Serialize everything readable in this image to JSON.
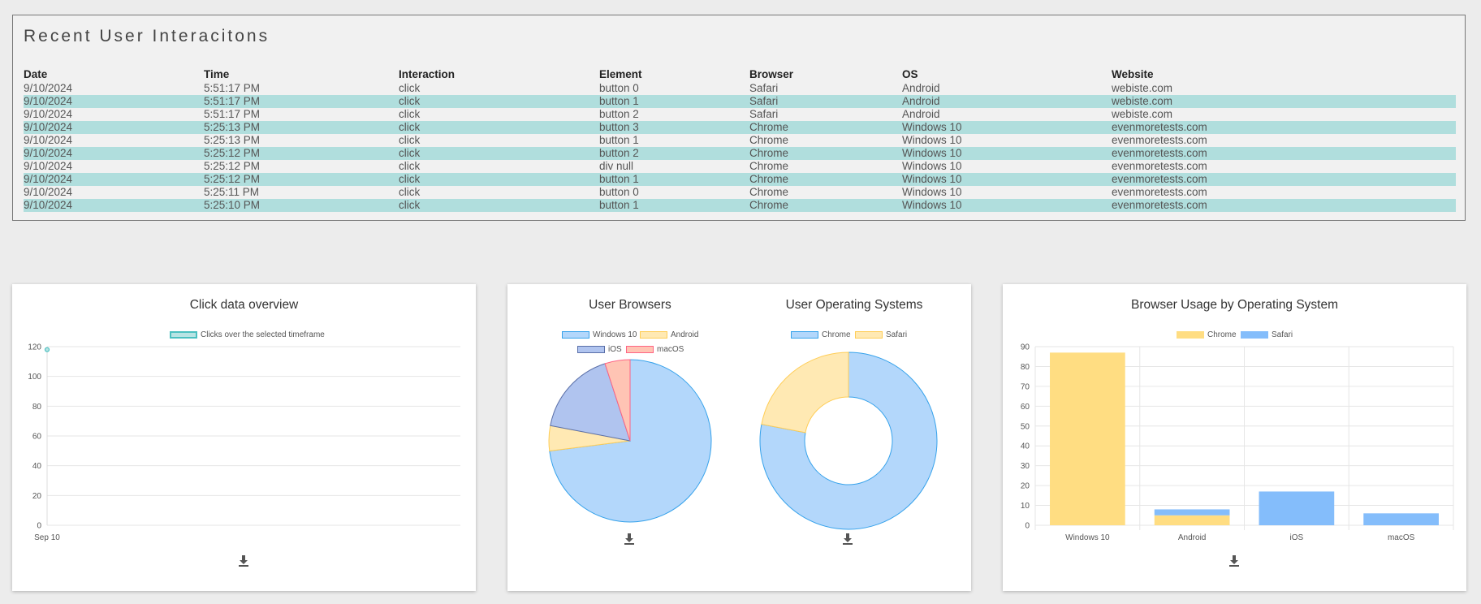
{
  "table": {
    "title": "Recent User Interacitons",
    "columns": [
      "Date",
      "Time",
      "Interaction",
      "Element",
      "Browser",
      "OS",
      "Website"
    ],
    "rows": [
      [
        "9/10/2024",
        "5:51:17 PM",
        "click",
        "button 0",
        "Safari",
        "Android",
        "webiste.com"
      ],
      [
        "9/10/2024",
        "5:51:17 PM",
        "click",
        "button 1",
        "Safari",
        "Android",
        "webiste.com"
      ],
      [
        "9/10/2024",
        "5:51:17 PM",
        "click",
        "button 2",
        "Safari",
        "Android",
        "webiste.com"
      ],
      [
        "9/10/2024",
        "5:25:13 PM",
        "click",
        "button 3",
        "Chrome",
        "Windows 10",
        "evenmoretests.com"
      ],
      [
        "9/10/2024",
        "5:25:13 PM",
        "click",
        "button 1",
        "Chrome",
        "Windows 10",
        "evenmoretests.com"
      ],
      [
        "9/10/2024",
        "5:25:12 PM",
        "click",
        "button 2",
        "Chrome",
        "Windows 10",
        "evenmoretests.com"
      ],
      [
        "9/10/2024",
        "5:25:12 PM",
        "click",
        "div null",
        "Chrome",
        "Windows 10",
        "evenmoretests.com"
      ],
      [
        "9/10/2024",
        "5:25:12 PM",
        "click",
        "button 1",
        "Chrome",
        "Windows 10",
        "evenmoretests.com"
      ],
      [
        "9/10/2024",
        "5:25:11 PM",
        "click",
        "button 0",
        "Chrome",
        "Windows 10",
        "evenmoretests.com"
      ],
      [
        "9/10/2024",
        "5:25:10 PM",
        "click",
        "button 1",
        "Chrome",
        "Windows 10",
        "evenmoretests.com"
      ]
    ]
  },
  "icons": {
    "download": "download-icon"
  },
  "colors": {
    "row_highlight": "#b0dedd",
    "teal": "#4bc0c0",
    "blue": "#36a2eb",
    "blue_fill": "#b3d7fb",
    "yellow": "#ffcd56",
    "yellow_fill": "#ffe9b3",
    "indigo_fill": "#b0c4ef",
    "red": "#ff6384",
    "red_fill": "#ffc4b4"
  },
  "chart_data": [
    {
      "type": "line",
      "title": "Click data overview",
      "series": [
        {
          "name": "Clicks over the selected timeframe",
          "x": [
            "Sep 10"
          ],
          "values": [
            118
          ]
        }
      ],
      "x_ticks": [
        "Sep 10"
      ],
      "y_ticks": [
        0,
        20,
        40,
        60,
        80,
        100,
        120
      ],
      "ylim": [
        0,
        120
      ],
      "grid": true,
      "legend": "top-center"
    },
    {
      "type": "pie",
      "title": "User Browsers",
      "labels": [
        "Windows 10",
        "Android",
        "iOS",
        "macOS"
      ],
      "values": [
        73,
        5,
        17,
        5
      ],
      "colors": [
        "#b3d7fb",
        "#ffe9b3",
        "#b0c4ef",
        "#ffc4b4"
      ],
      "borders": [
        "#36a2eb",
        "#ffcd56",
        "#5a6fa8",
        "#ff6384"
      ],
      "legend": "top-center"
    },
    {
      "type": "pie",
      "title": "User Operating Systems",
      "labels": [
        "Chrome",
        "Safari"
      ],
      "values": [
        78,
        22
      ],
      "colors": [
        "#b3d7fb",
        "#ffe9b3"
      ],
      "borders": [
        "#36a2eb",
        "#ffcd56"
      ],
      "doughnut": true,
      "legend": "top-center"
    },
    {
      "type": "bar",
      "title": "Browser Usage by Operating System",
      "categories": [
        "Windows 10",
        "Android",
        "iOS",
        "macOS"
      ],
      "series": [
        {
          "name": "Chrome",
          "values": [
            87,
            5,
            0,
            0
          ],
          "color": "#ffdd82"
        },
        {
          "name": "Safari",
          "values": [
            0,
            3,
            17,
            6
          ],
          "color": "#84bdfb"
        }
      ],
      "stacked": true,
      "y_ticks": [
        0,
        10,
        20,
        30,
        40,
        50,
        60,
        70,
        80,
        90
      ],
      "ylim": [
        0,
        90
      ],
      "grid": true,
      "legend": "top-center"
    }
  ]
}
